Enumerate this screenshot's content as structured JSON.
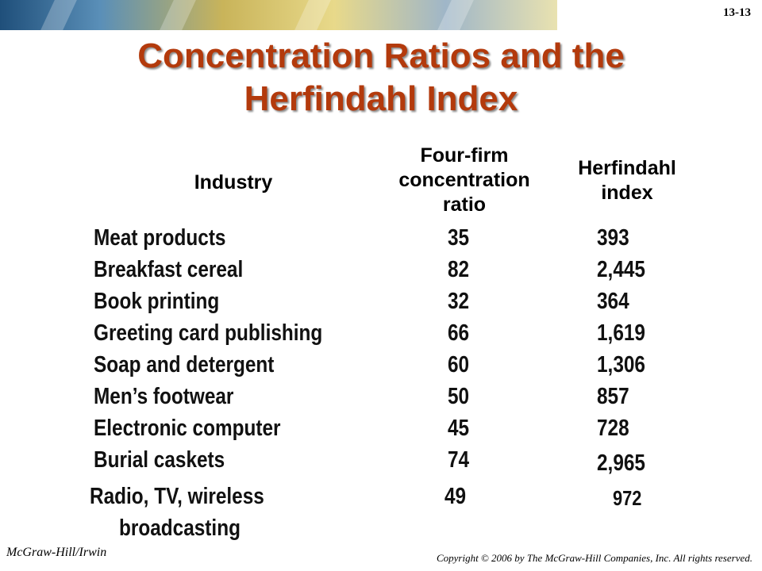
{
  "slide": {
    "number": "13-13"
  },
  "title": {
    "line1": "Concentration Ratios and the",
    "line2": "Herfindahl Index"
  },
  "table": {
    "headers": {
      "industry": "Industry",
      "concentration": [
        "Four-firm",
        "concentration",
        "ratio"
      ],
      "herfindahl": [
        "Herfindahl",
        "index"
      ]
    },
    "rows": [
      {
        "industry": "Meat products",
        "ratio": "35",
        "index": "393"
      },
      {
        "industry": "Breakfast cereal",
        "ratio": "82",
        "index": "2,445"
      },
      {
        "industry": "Book printing",
        "ratio": "32",
        "index": "364"
      },
      {
        "industry": "Greeting card publishing",
        "ratio": "66",
        "index": "1,619"
      },
      {
        "industry": "Soap and detergent",
        "ratio": "60",
        "index": "1,306"
      },
      {
        "industry": "Men’s footwear",
        "ratio": "50",
        "index": "857"
      },
      {
        "industry": "Electronic computer",
        "ratio": "45",
        "index": "728"
      },
      {
        "industry": "Burial caskets",
        "ratio": "74",
        "index": "2,965"
      }
    ],
    "last_row": {
      "industry_line1": "Radio, TV, wireless",
      "industry_line2": "broadcasting",
      "ratio": "49",
      "index": "972"
    }
  },
  "footer": {
    "publisher": "McGraw-Hill/Irwin",
    "copyright": "Copyright © 2006 by The McGraw-Hill Companies, Inc. All rights reserved."
  },
  "colors": {
    "title": "#b33a0c"
  }
}
